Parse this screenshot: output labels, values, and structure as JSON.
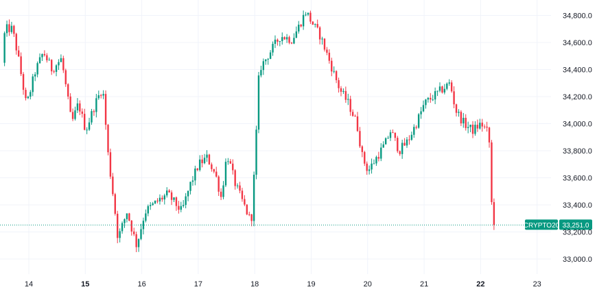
{
  "chart_data": {
    "type": "candlestick",
    "title": "",
    "xlabel": "",
    "ylabel": "",
    "ylim": [
      32850,
      34930
    ],
    "xlim": [
      13.55,
      23.4
    ],
    "y_ticks": [
      "33,000.0",
      "33,200.0",
      "33,400.0",
      "33,600.0",
      "33,800.0",
      "34,000.0",
      "34,200.0",
      "34,400.0",
      "34,600.0",
      "34,800.0"
    ],
    "y_tick_values": [
      33000,
      33200,
      33400,
      33600,
      33800,
      34000,
      34200,
      34400,
      34600,
      34800
    ],
    "x_ticks": [
      {
        "label": "14",
        "value": 14,
        "bold": false
      },
      {
        "label": "15",
        "value": 15,
        "bold": true
      },
      {
        "label": "16",
        "value": 16,
        "bold": false
      },
      {
        "label": "17",
        "value": 17,
        "bold": false
      },
      {
        "label": "18",
        "value": 18,
        "bold": false
      },
      {
        "label": "19",
        "value": 19,
        "bold": false
      },
      {
        "label": "20",
        "value": 20,
        "bold": false
      },
      {
        "label": "21",
        "value": 21,
        "bold": false
      },
      {
        "label": "22",
        "value": 22,
        "bold": true
      },
      {
        "label": "23",
        "value": 23,
        "bold": false
      }
    ],
    "key_path": [
      [
        13.57,
        34450
      ],
      [
        13.62,
        34700
      ],
      [
        13.75,
        34700
      ],
      [
        13.85,
        34500
      ],
      [
        14.0,
        34130
      ],
      [
        14.15,
        34380
      ],
      [
        14.3,
        34530
      ],
      [
        14.45,
        34400
      ],
      [
        14.62,
        34480
      ],
      [
        14.8,
        34000
      ],
      [
        14.92,
        34150
      ],
      [
        15.05,
        33950
      ],
      [
        15.22,
        34150
      ],
      [
        15.35,
        34270
      ],
      [
        15.45,
        33750
      ],
      [
        15.55,
        33420
      ],
      [
        15.62,
        33150
      ],
      [
        15.78,
        33350
      ],
      [
        15.95,
        33100
      ],
      [
        16.1,
        33350
      ],
      [
        16.3,
        33420
      ],
      [
        16.5,
        33480
      ],
      [
        16.75,
        33350
      ],
      [
        16.9,
        33550
      ],
      [
        17.05,
        33700
      ],
      [
        17.2,
        33750
      ],
      [
        17.35,
        33620
      ],
      [
        17.45,
        33450
      ],
      [
        17.55,
        33780
      ],
      [
        17.7,
        33550
      ],
      [
        17.85,
        33400
      ],
      [
        17.98,
        33270
      ],
      [
        18.05,
        33750
      ],
      [
        18.12,
        34400
      ],
      [
        18.3,
        34520
      ],
      [
        18.5,
        34650
      ],
      [
        18.7,
        34620
      ],
      [
        18.8,
        34700
      ],
      [
        18.95,
        34830
      ],
      [
        19.05,
        34750
      ],
      [
        19.2,
        34650
      ],
      [
        19.35,
        34480
      ],
      [
        19.55,
        34250
      ],
      [
        19.7,
        34150
      ],
      [
        19.85,
        34000
      ],
      [
        19.95,
        33750
      ],
      [
        20.05,
        33650
      ],
      [
        20.2,
        33750
      ],
      [
        20.35,
        33850
      ],
      [
        20.45,
        33950
      ],
      [
        20.6,
        33800
      ],
      [
        20.75,
        33870
      ],
      [
        20.9,
        34000
      ],
      [
        21.05,
        34150
      ],
      [
        21.2,
        34200
      ],
      [
        21.35,
        34250
      ],
      [
        21.5,
        34300
      ],
      [
        21.6,
        34100
      ],
      [
        21.75,
        34000
      ],
      [
        21.9,
        33950
      ],
      [
        22.05,
        34000
      ],
      [
        22.15,
        33950
      ],
      [
        22.2,
        33850
      ],
      [
        22.25,
        33251
      ]
    ],
    "last_price": 33251.0,
    "last_label": "CRYPTO20",
    "last_price_label": "33,251.0",
    "grid": true,
    "legend": "none"
  },
  "colors": {
    "up": "#089981",
    "down": "#f23645",
    "grid": "#f0f3fa",
    "axis_text": "#131722",
    "price_tag": "#089981",
    "price_line": "#089981"
  }
}
